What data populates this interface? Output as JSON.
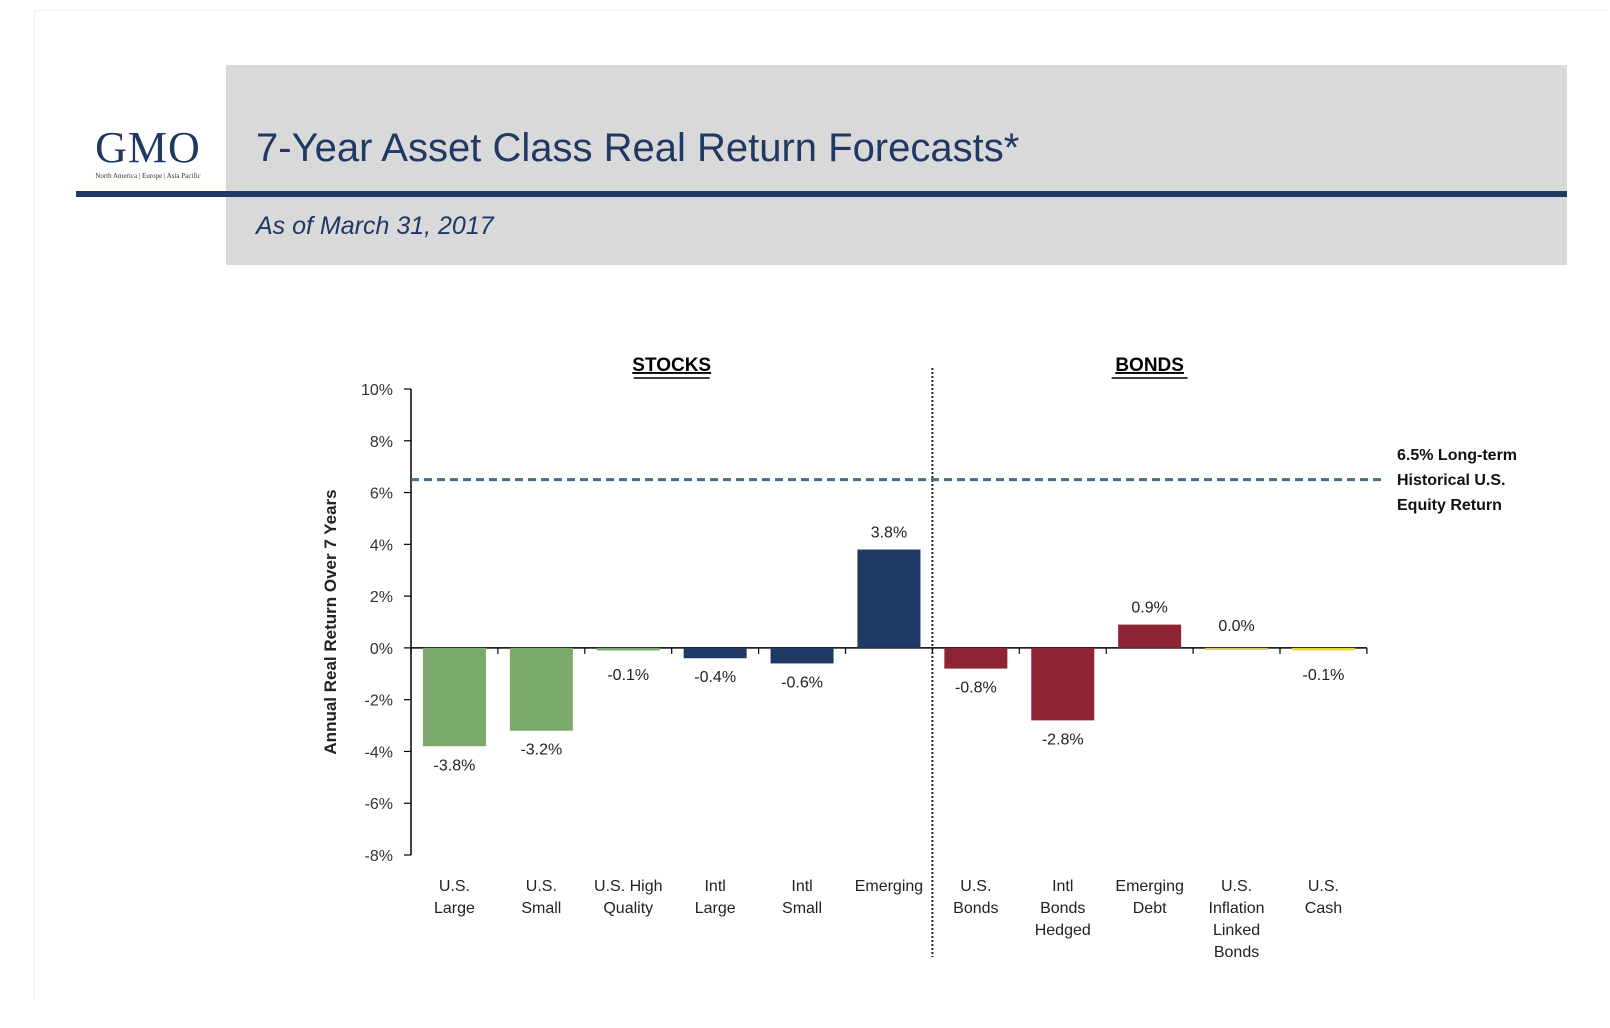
{
  "header": {
    "logo_text": "GMO",
    "logo_tagline": "North America | Europe | Asia Pacific",
    "title": "7-Year Asset Class Real Return Forecasts*",
    "subtitle": "As of March 31, 2017"
  },
  "chart_data": {
    "type": "bar",
    "ylabel": "Annual Real Return Over 7 Years",
    "ylim": [
      -8,
      10
    ],
    "yticks": [
      -8,
      -6,
      -4,
      -2,
      0,
      2,
      4,
      6,
      8,
      10
    ],
    "ytick_labels": [
      "-8%",
      "-6%",
      "-4%",
      "-2%",
      "0%",
      "2%",
      "4%",
      "6%",
      "8%",
      "10%"
    ],
    "grid": false,
    "groups": [
      {
        "label": "STOCKS",
        "categories": [
          "U.S. Large",
          "U.S. Small",
          "U.S. High Quality",
          "Intl Large",
          "Intl Small",
          "Emerging"
        ]
      },
      {
        "label": "BONDS",
        "categories": [
          "U.S. Bonds",
          "Intl Bonds Hedged",
          "Emerging Debt",
          "U.S. Inflation Linked Bonds",
          "U.S. Cash"
        ]
      }
    ],
    "bars": [
      {
        "category": "U.S. Large",
        "lines": [
          "U.S.",
          "Large"
        ],
        "value": -3.8,
        "label": "-3.8%",
        "color": "#7aa96b"
      },
      {
        "category": "U.S. Small",
        "lines": [
          "U.S.",
          "Small"
        ],
        "value": -3.2,
        "label": "-3.2%",
        "color": "#7aa96b"
      },
      {
        "category": "U.S. High Quality",
        "lines": [
          "U.S. High",
          "Quality"
        ],
        "value": -0.1,
        "label": "-0.1%",
        "color": "#7aa96b"
      },
      {
        "category": "Intl Large",
        "lines": [
          "Intl",
          "Large"
        ],
        "value": -0.4,
        "label": "-0.4%",
        "color": "#1f3864"
      },
      {
        "category": "Intl Small",
        "lines": [
          "Intl",
          "Small"
        ],
        "value": -0.6,
        "label": "-0.6%",
        "color": "#1f3864"
      },
      {
        "category": "Emerging",
        "lines": [
          "Emerging"
        ],
        "value": 3.8,
        "label": "3.8%",
        "color": "#1f3864"
      },
      {
        "category": "U.S. Bonds",
        "lines": [
          "U.S.",
          "Bonds"
        ],
        "value": -0.8,
        "label": "-0.8%",
        "color": "#8e2433"
      },
      {
        "category": "Intl Bonds Hedged",
        "lines": [
          "Intl",
          "Bonds",
          "Hedged"
        ],
        "value": -2.8,
        "label": "-2.8%",
        "color": "#8e2433"
      },
      {
        "category": "Emerging Debt",
        "lines": [
          "Emerging",
          "Debt"
        ],
        "value": 0.9,
        "label": "0.9%",
        "color": "#8e2433"
      },
      {
        "category": "U.S. Inflation Linked Bonds",
        "lines": [
          "U.S.",
          "Inflation",
          "Linked",
          "Bonds"
        ],
        "value": 0.0,
        "label": "0.0%",
        "color": "#d6c36a"
      },
      {
        "category": "U.S. Cash",
        "lines": [
          "U.S.",
          "Cash"
        ],
        "value": -0.1,
        "label": "-0.1%",
        "color": "#e8d840"
      }
    ],
    "reference_line": {
      "value": 6.5,
      "style": "dashed",
      "color": "#4a6b8a",
      "label_lines": [
        "6.5% Long-term",
        "Historical U.S.",
        "Equity Return"
      ]
    }
  }
}
